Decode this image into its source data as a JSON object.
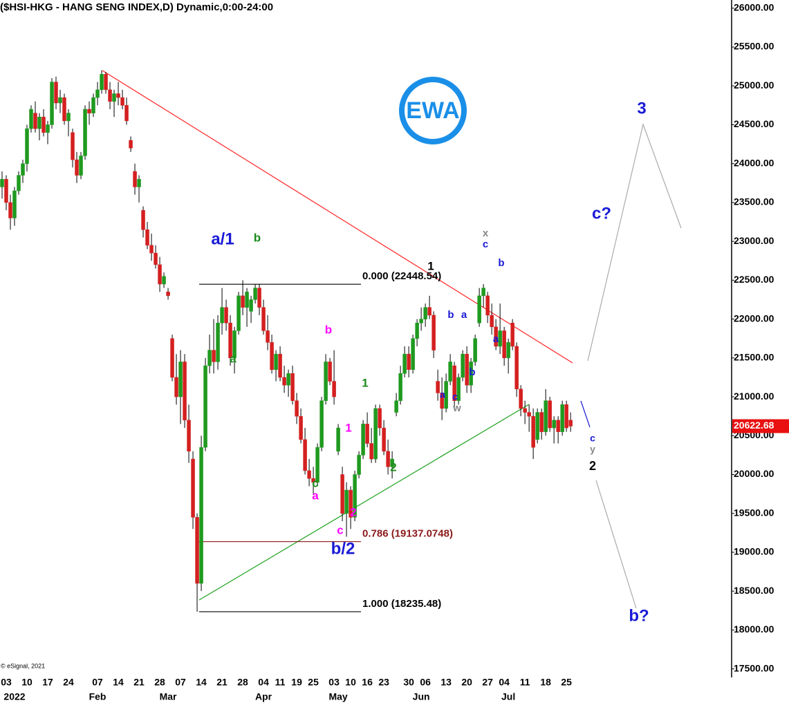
{
  "chart_data": {
    "type": "candlestick",
    "title": "($HSI-HKG - HANG SENG INDEX,D) Dynamic,0:00-24:00",
    "copyright": "© eSignal, 2021",
    "logo": "EWA",
    "up_color": "#1f9a1f",
    "down_color": "#d42020",
    "x": [
      0,
      1,
      2,
      3,
      4,
      5,
      6,
      7,
      8,
      9,
      10,
      11,
      12,
      13,
      14,
      15,
      16,
      17,
      18,
      19,
      20,
      21,
      22,
      23,
      24,
      25,
      26,
      27,
      28,
      29,
      30,
      31,
      32,
      33,
      34,
      35,
      36,
      37,
      38,
      39,
      40,
      41,
      42,
      43,
      44,
      45,
      46,
      47,
      48,
      49,
      50,
      51,
      52,
      53,
      54,
      55,
      56,
      57,
      58,
      59,
      60,
      61,
      62,
      63,
      64,
      65,
      66,
      67,
      68,
      69,
      70,
      71,
      72,
      73,
      74,
      75,
      76,
      77,
      78,
      79,
      80,
      81,
      82,
      83,
      84,
      85,
      86,
      87,
      88,
      89,
      90,
      91,
      92,
      93,
      94,
      95,
      96,
      97,
      98,
      99,
      100,
      101,
      102,
      103,
      104,
      105,
      106,
      107,
      108,
      109,
      110,
      111,
      112,
      113,
      114,
      115,
      116,
      117,
      118,
      119,
      120,
      121,
      122,
      123,
      124,
      125,
      126,
      127,
      128,
      129,
      130,
      131,
      132,
      133,
      134,
      135,
      136,
      137
    ],
    "open": [
      23700,
      23800,
      23500,
      23300,
      23650,
      23850,
      24000,
      24450,
      24650,
      24450,
      24600,
      24400,
      24500,
      25050,
      24780,
      24850,
      24550,
      24400,
      24050,
      23850,
      24100,
      24700,
      24650,
      24850,
      24950,
      25150,
      24950,
      24800,
      24900,
      24850,
      24750,
      24300,
      23900,
      23700,
      23400,
      23150,
      22950,
      22850,
      22700,
      22450,
      22350,
      21750,
      21250,
      21000,
      21450,
      20700,
      20200,
      19450,
      18600,
      20350,
      21400,
      21600,
      21450,
      21950,
      22150,
      21950,
      21500,
      21850,
      22300,
      22150,
      22100,
      22250,
      22400,
      22150,
      21850,
      21700,
      21350,
      21550,
      21250,
      21150,
      21300,
      20950,
      20750,
      20450,
      20050,
      19950,
      19900,
      20350,
      20950,
      21450,
      21200,
      20300,
      20000,
      19500,
      19800,
      19450,
      20000,
      20250,
      20650,
      20400,
      20200,
      20850,
      20600,
      20300,
      20100,
      20800,
      20950,
      21300,
      21550,
      21350,
      21750,
      21950,
      22000,
      22150,
      22050,
      21200,
      21050,
      20850,
      21200,
      21400,
      20950,
      21250,
      21550,
      21150,
      21450,
      21950,
      22300,
      22300,
      22050,
      21900,
      21650,
      21850,
      21500,
      21950,
      21650,
      21100,
      20850,
      20800,
      20750,
      20450,
      20800,
      20550,
      20950,
      20600,
      20700,
      20550,
      20900,
      20700
    ],
    "high": [
      23900,
      23850,
      23600,
      23700,
      23900,
      24050,
      24500,
      24750,
      24800,
      24650,
      24700,
      24550,
      25100,
      25120,
      24950,
      24900,
      24700,
      24450,
      24150,
      24150,
      24750,
      24800,
      24900,
      25050,
      25200,
      25180,
      25050,
      24950,
      25050,
      24950,
      24850,
      24350,
      24000,
      23850,
      23450,
      23250,
      23100,
      22950,
      22800,
      22600,
      22400,
      21800,
      21550,
      21600,
      21550,
      20900,
      20300,
      19500,
      20500,
      21500,
      21800,
      22000,
      22050,
      22400,
      22250,
      22050,
      21900,
      22350,
      22500,
      22400,
      22300,
      22448.54,
      22450,
      22250,
      22050,
      21800,
      21600,
      21650,
      21400,
      21350,
      21400,
      21050,
      20850,
      20600,
      20200,
      20100,
      20400,
      21000,
      21550,
      21500,
      21600,
      20650,
      20100,
      19900,
      19850,
      20050,
      20300,
      20700,
      20800,
      20600,
      20900,
      20900,
      20700,
      20450,
      20300,
      21050,
      21400,
      21650,
      21650,
      21800,
      22000,
      22150,
      22200,
      22300,
      22100,
      21350,
      21250,
      21300,
      21550,
      21450,
      21300,
      21600,
      21650,
      21500,
      21800,
      22400,
      22450,
      22350,
      22200,
      22000,
      22200,
      21900,
      21750,
      22000,
      21700,
      21150,
      20950,
      20900,
      20850,
      20850,
      20850,
      21100,
      21000,
      20750,
      20750,
      20950,
      20950,
      20800
    ],
    "low": [
      23550,
      23400,
      23150,
      23200,
      23600,
      23750,
      23900,
      24400,
      24400,
      24300,
      24350,
      24250,
      24450,
      24700,
      24650,
      24500,
      24350,
      23950,
      23750,
      23800,
      24050,
      24500,
      24600,
      24750,
      24900,
      24900,
      24700,
      24600,
      24750,
      24700,
      24500,
      24150,
      23600,
      23500,
      23050,
      22900,
      22750,
      22650,
      22350,
      22400,
      22250,
      21200,
      20900,
      20650,
      20600,
      20150,
      19300,
      18235.48,
      18500,
      20300,
      21300,
      21300,
      21350,
      21800,
      21850,
      21400,
      21300,
      21800,
      22050,
      21900,
      21950,
      22200,
      22050,
      21800,
      21600,
      21300,
      21200,
      21200,
      21050,
      21000,
      20900,
      20650,
      20400,
      20000,
      19850,
      19750,
      19850,
      20300,
      20900,
      21150,
      20900,
      20250,
      19400,
      19200,
      19300,
      19400,
      19950,
      20200,
      20350,
      20150,
      20150,
      20500,
      20250,
      20000,
      19950,
      20750,
      20900,
      21250,
      21250,
      21300,
      21650,
      21850,
      21900,
      22000,
      21500,
      20950,
      20700,
      20800,
      21150,
      20850,
      20900,
      21200,
      21050,
      21050,
      21400,
      21900,
      22150,
      21950,
      21800,
      21600,
      21550,
      21400,
      21300,
      21600,
      21000,
      20750,
      20650,
      20550,
      20200,
      20400,
      20450,
      20500,
      20550,
      20400,
      20400,
      20500,
      20550,
      20550
    ],
    "close": [
      23800,
      23500,
      23300,
      23650,
      23850,
      24000,
      24450,
      24700,
      24450,
      24600,
      24400,
      24500,
      25050,
      24780,
      24850,
      24550,
      24650,
      24050,
      23850,
      24100,
      24700,
      24650,
      24850,
      24950,
      25150,
      24950,
      24800,
      24900,
      24850,
      24750,
      24550,
      24200,
      23700,
      23800,
      23150,
      22950,
      22850,
      22700,
      22450,
      22550,
      22300,
      21250,
      21000,
      21450,
      20700,
      20300,
      19450,
      18600,
      20350,
      21400,
      21600,
      21450,
      21950,
      22150,
      21950,
      21500,
      21850,
      22300,
      22150,
      22350,
      22250,
      22400,
      22150,
      21850,
      21700,
      21350,
      21550,
      21250,
      21150,
      21300,
      20950,
      20750,
      20450,
      20050,
      19950,
      19900,
      20350,
      20950,
      21450,
      21200,
      21000,
      20600,
      19500,
      19800,
      19450,
      20000,
      20250,
      20650,
      20400,
      20200,
      20850,
      20600,
      20300,
      20100,
      20200,
      20950,
      21300,
      21550,
      21350,
      21750,
      21950,
      22000,
      22150,
      22050,
      21600,
      21050,
      20850,
      21200,
      21450,
      20950,
      21250,
      21550,
      21150,
      21450,
      21750,
      22300,
      22400,
      22050,
      21900,
      21650,
      21850,
      21500,
      21700,
      21650,
      21100,
      20850,
      20800,
      20750,
      20350,
      20800,
      20550,
      20950,
      20600,
      20700,
      20550,
      20900,
      20600,
      20622.68
    ],
    "last_price": 20622.68,
    "xlim": [
      -0.5,
      175.8
    ],
    "ylim": [
      17390,
      26105
    ],
    "yticks": [
      {
        "value": 17500,
        "label": "17500.00"
      },
      {
        "value": 18000,
        "label": "18000.00"
      },
      {
        "value": 18500,
        "label": "18500.00"
      },
      {
        "value": 19000,
        "label": "19000.00"
      },
      {
        "value": 19500,
        "label": "19500.00"
      },
      {
        "value": 20000,
        "label": "20000.00"
      },
      {
        "value": 20500,
        "label": "20500.00"
      },
      {
        "value": 21000,
        "label": "21000.00"
      },
      {
        "value": 21500,
        "label": "21500.00"
      },
      {
        "value": 22000,
        "label": "22000.00"
      },
      {
        "value": 22500,
        "label": "22500.00"
      },
      {
        "value": 23000,
        "label": "23000.00"
      },
      {
        "value": 23500,
        "label": "23500.00"
      },
      {
        "value": 24000,
        "label": "24000.00"
      },
      {
        "value": 24500,
        "label": "24500.00"
      },
      {
        "value": 25000,
        "label": "25000.00"
      },
      {
        "value": 25500,
        "label": "25500.00"
      },
      {
        "value": 26000,
        "label": "26000.00"
      }
    ],
    "xticks": [
      {
        "value": 1,
        "label": "03"
      },
      {
        "value": 6,
        "label": "10"
      },
      {
        "value": 11,
        "label": "17"
      },
      {
        "value": 16,
        "label": "24"
      },
      {
        "value": 23,
        "label": "07"
      },
      {
        "value": 28,
        "label": "14"
      },
      {
        "value": 33,
        "label": "21"
      },
      {
        "value": 38,
        "label": "28"
      },
      {
        "value": 43,
        "label": "07"
      },
      {
        "value": 48,
        "label": "14"
      },
      {
        "value": 53,
        "label": "21"
      },
      {
        "value": 58,
        "label": "28"
      },
      {
        "value": 63,
        "label": "04"
      },
      {
        "value": 67,
        "label": "11"
      },
      {
        "value": 71,
        "label": "19"
      },
      {
        "value": 75,
        "label": "25"
      },
      {
        "value": 80,
        "label": "03"
      },
      {
        "value": 84,
        "label": "10"
      },
      {
        "value": 88,
        "label": "16"
      },
      {
        "value": 92,
        "label": "23"
      },
      {
        "value": 98,
        "label": "30"
      },
      {
        "value": 102,
        "label": "06"
      },
      {
        "value": 107,
        "label": "13"
      },
      {
        "value": 112,
        "label": "20"
      },
      {
        "value": 117,
        "label": "27"
      },
      {
        "value": 121,
        "label": "04"
      },
      {
        "value": 126,
        "label": "11"
      },
      {
        "value": 131,
        "label": "18"
      },
      {
        "value": 136,
        "label": "25"
      }
    ],
    "month_ticks": [
      {
        "value": 3,
        "label": "2022"
      },
      {
        "value": 23,
        "label": "Feb"
      },
      {
        "value": 40,
        "label": "Mar"
      },
      {
        "value": 63,
        "label": "Apr"
      },
      {
        "value": 81,
        "label": "May"
      },
      {
        "value": 101,
        "label": "Jun"
      },
      {
        "value": 122,
        "label": "Jul"
      }
    ],
    "fib_levels": [
      {
        "value": 22448.54,
        "label": "0.000 (22448.54)",
        "color": "#000000"
      },
      {
        "value": 19137.0748,
        "label": "0.786 (19137.0748)",
        "color": "#8b1a1a"
      },
      {
        "value": 18235.48,
        "label": "1.000 (18235.48)",
        "color": "#000000"
      }
    ],
    "wave_labels": [
      {
        "text": "a/1",
        "color": "#1a1ad6"
      },
      {
        "text": "b",
        "color": "#1a8a1a"
      },
      {
        "text": "a",
        "color": "#1a8a1a"
      },
      {
        "text": "b",
        "color": "#ff00ff"
      },
      {
        "text": "c",
        "color": "#1a8a1a"
      },
      {
        "text": "a",
        "color": "#ff00ff"
      },
      {
        "text": "1",
        "color": "#1a8a1a"
      },
      {
        "text": "1",
        "color": "#ff00ff"
      },
      {
        "text": "2",
        "color": "#1a8a1a"
      },
      {
        "text": "2",
        "color": "#ff00ff"
      },
      {
        "text": "c",
        "color": "#ff00ff"
      },
      {
        "text": "b/2",
        "color": "#1a1ad6"
      },
      {
        "text": "1",
        "color": "#000000"
      },
      {
        "text": "b",
        "color": "#1a1ad6"
      },
      {
        "text": "a",
        "color": "#1a1ad6"
      },
      {
        "text": "a",
        "color": "#1a1ad6"
      },
      {
        "text": "c",
        "color": "#1a1ad6"
      },
      {
        "text": "w",
        "color": "#888888"
      },
      {
        "text": "x",
        "color": "#888888"
      },
      {
        "text": "c",
        "color": "#1a1ad6"
      },
      {
        "text": "b",
        "color": "#1a1ad6"
      },
      {
        "text": "a",
        "color": "#1a1ad6"
      },
      {
        "text": "b",
        "color": "#1a1ad6"
      },
      {
        "text": "c",
        "color": "#1a1ad6"
      },
      {
        "text": "y",
        "color": "#888888"
      },
      {
        "text": "2",
        "color": "#000000"
      },
      {
        "text": "3",
        "color": "#1a1ad6"
      },
      {
        "text": "c?",
        "color": "#1a1ad6"
      },
      {
        "text": "b?",
        "color": "#1a1ad6"
      }
    ]
  }
}
